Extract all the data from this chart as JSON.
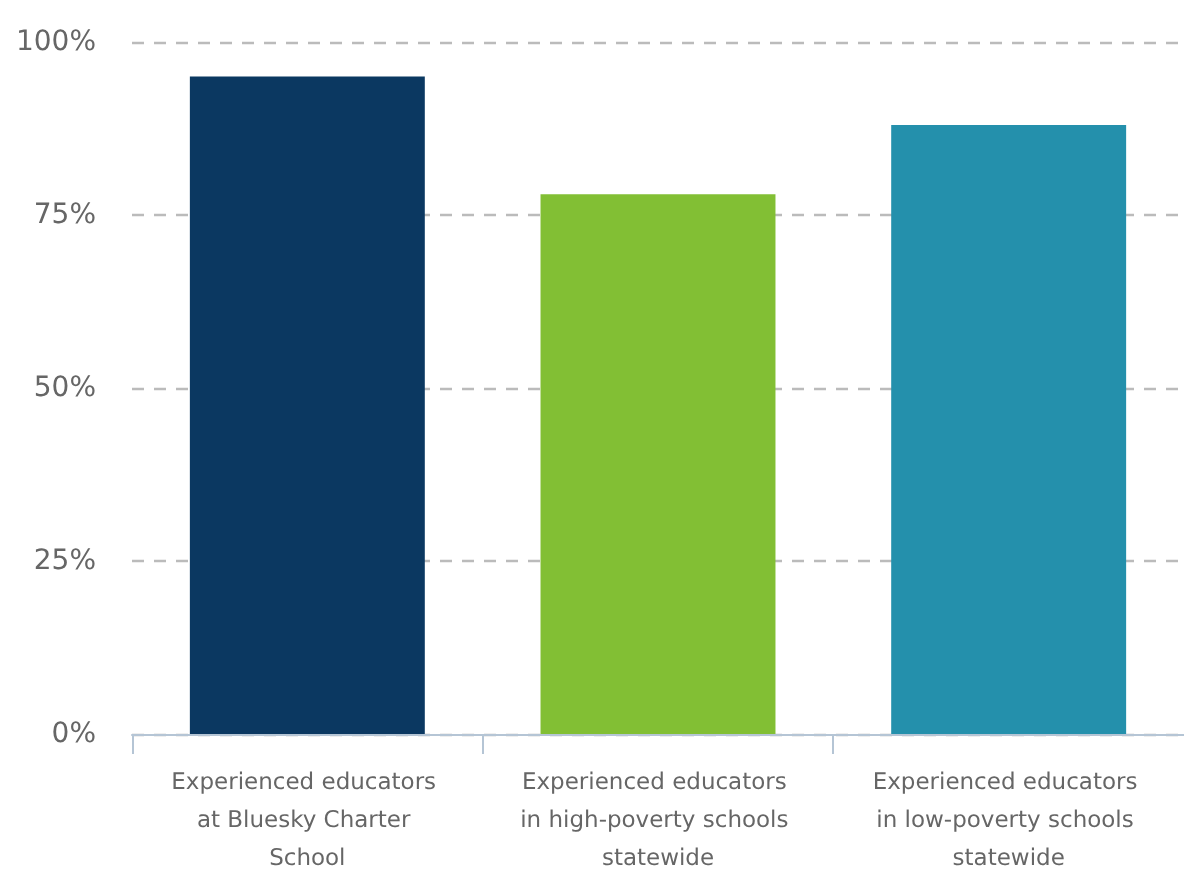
{
  "chart_data": {
    "type": "bar",
    "categories": [
      "Experienced educators at Bluesky Charter School",
      "Experienced educators in high-poverty schools statewide",
      "Experienced educators in low-poverty schools statewide"
    ],
    "values": [
      95,
      78,
      88
    ],
    "colors": [
      "#0b3861",
      "#82bf34",
      "#2490ac"
    ],
    "ylim": [
      0,
      100
    ],
    "yticks": [
      {
        "value": 0,
        "label": "0%"
      },
      {
        "value": 25,
        "label": "25%"
      },
      {
        "value": 50,
        "label": "50%"
      },
      {
        "value": 75,
        "label": "75%"
      },
      {
        "value": 100,
        "label": "100%"
      }
    ],
    "grid": "y"
  }
}
